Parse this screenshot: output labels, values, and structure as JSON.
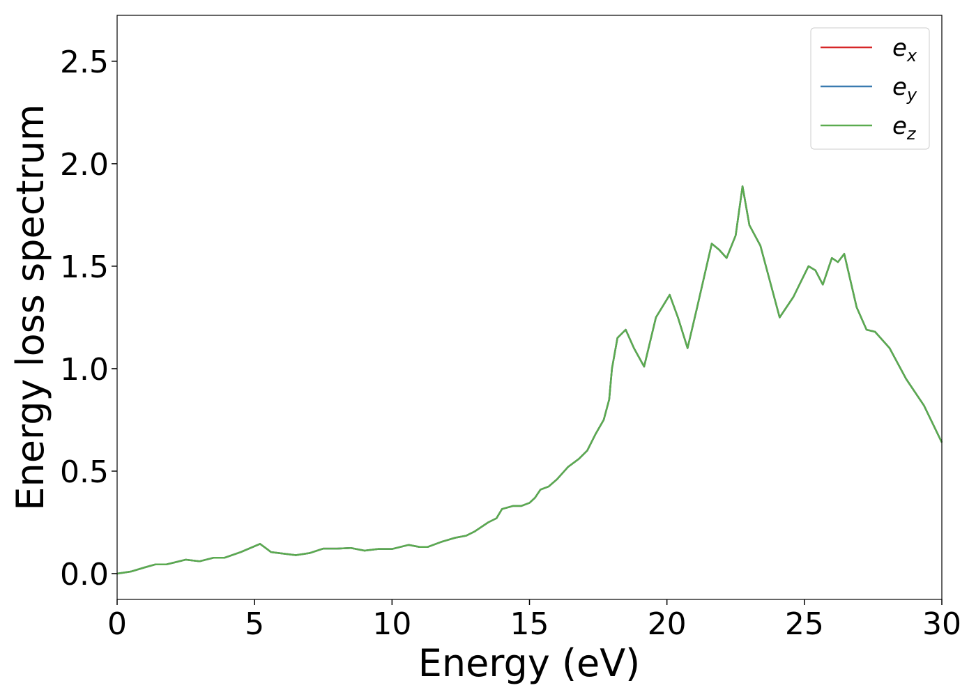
{
  "chart_data": {
    "type": "line",
    "xlabel": "Energy (eV)",
    "ylabel": "Energy loss spectrum",
    "x": [
      0,
      0.5,
      1.0,
      1.4,
      1.8,
      2.5,
      3.0,
      3.5,
      3.9,
      4.5,
      5.2,
      5.6,
      6.5,
      7.0,
      7.5,
      8.0,
      8.5,
      9.0,
      9.5,
      10.0,
      10.6,
      11.0,
      11.3,
      11.8,
      12.3,
      12.7,
      13.0,
      13.5,
      13.8,
      14.0,
      14.4,
      14.7,
      15.0,
      15.2,
      15.4,
      15.7,
      16.0,
      16.4,
      16.8,
      17.1,
      17.4,
      17.7,
      17.9,
      18.0,
      18.2,
      18.5,
      18.8,
      19.17,
      19.6,
      20.1,
      20.4,
      20.75,
      21.1,
      21.63,
      21.9,
      22.17,
      22.5,
      22.75,
      23.0,
      23.4,
      23.7,
      24.1,
      24.6,
      25.15,
      25.4,
      25.67,
      26.0,
      26.22,
      26.45,
      26.9,
      27.26,
      27.57,
      28.1,
      28.7,
      29.35,
      30.0
    ],
    "series": [
      {
        "name": "ex",
        "color": "#d62728",
        "values": [
          0.0,
          0.01,
          0.03,
          0.045,
          0.045,
          0.068,
          0.06,
          0.077,
          0.077,
          0.105,
          0.145,
          0.105,
          0.09,
          0.1,
          0.122,
          0.122,
          0.125,
          0.112,
          0.12,
          0.12,
          0.14,
          0.13,
          0.13,
          0.155,
          0.175,
          0.185,
          0.205,
          0.25,
          0.27,
          0.315,
          0.33,
          0.33,
          0.345,
          0.37,
          0.41,
          0.425,
          0.46,
          0.52,
          0.56,
          0.6,
          0.68,
          0.75,
          0.85,
          1.0,
          1.15,
          1.19,
          1.1,
          1.01,
          1.25,
          1.36,
          1.25,
          1.1,
          1.3,
          1.61,
          1.58,
          1.54,
          1.65,
          1.89,
          1.7,
          1.6,
          1.45,
          1.25,
          1.35,
          1.5,
          1.48,
          1.41,
          1.54,
          1.52,
          1.56,
          1.3,
          1.19,
          1.18,
          1.1,
          0.95,
          0.82,
          0.64
        ]
      },
      {
        "name": "ey",
        "color": "#3a7bb0",
        "values": [
          0.0,
          0.01,
          0.03,
          0.045,
          0.045,
          0.068,
          0.06,
          0.077,
          0.077,
          0.105,
          0.145,
          0.105,
          0.09,
          0.1,
          0.122,
          0.122,
          0.125,
          0.112,
          0.12,
          0.12,
          0.14,
          0.13,
          0.13,
          0.155,
          0.175,
          0.185,
          0.205,
          0.25,
          0.27,
          0.315,
          0.33,
          0.33,
          0.345,
          0.37,
          0.41,
          0.425,
          0.46,
          0.52,
          0.56,
          0.6,
          0.68,
          0.75,
          0.85,
          1.0,
          1.15,
          1.19,
          1.1,
          1.01,
          1.25,
          1.36,
          1.25,
          1.1,
          1.3,
          1.61,
          1.58,
          1.54,
          1.65,
          1.89,
          1.7,
          1.6,
          1.45,
          1.25,
          1.35,
          1.5,
          1.48,
          1.41,
          1.54,
          1.52,
          1.56,
          1.3,
          1.19,
          1.18,
          1.1,
          0.95,
          0.82,
          0.64
        ]
      },
      {
        "name": "ez",
        "color": "#5aab4f",
        "values": [
          0.0,
          0.01,
          0.03,
          0.045,
          0.045,
          0.068,
          0.06,
          0.077,
          0.077,
          0.105,
          0.145,
          0.105,
          0.09,
          0.1,
          0.122,
          0.122,
          0.125,
          0.112,
          0.12,
          0.12,
          0.14,
          0.13,
          0.13,
          0.155,
          0.175,
          0.185,
          0.205,
          0.25,
          0.27,
          0.315,
          0.33,
          0.33,
          0.345,
          0.37,
          0.41,
          0.425,
          0.46,
          0.52,
          0.56,
          0.6,
          0.68,
          0.75,
          0.85,
          1.0,
          1.15,
          1.19,
          1.1,
          1.01,
          1.25,
          1.36,
          1.25,
          1.1,
          1.3,
          1.61,
          1.58,
          1.54,
          1.65,
          1.89,
          1.7,
          1.6,
          1.45,
          1.25,
          1.35,
          1.5,
          1.48,
          1.41,
          1.54,
          1.52,
          1.56,
          1.3,
          1.19,
          1.18,
          1.1,
          0.95,
          0.82,
          0.64
        ]
      }
    ],
    "xlim": [
      0,
      30
    ],
    "xticks": [
      0,
      5,
      10,
      15,
      20,
      25,
      30
    ],
    "ylim": [
      -0.126,
      2.724
    ],
    "yticks": [
      {
        "value": 0,
        "label": "0.0"
      },
      0.5,
      {
        "value": 1,
        "label": "1.0"
      },
      1.5,
      {
        "value": 2,
        "label": "2.0"
      },
      2.5
    ],
    "grid": false,
    "legend": "upper right"
  }
}
